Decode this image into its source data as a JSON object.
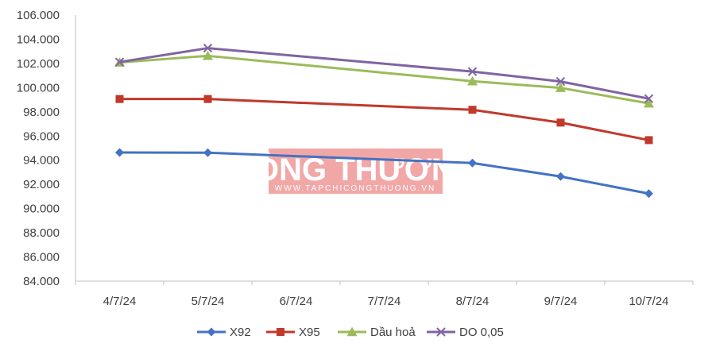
{
  "chart_data": {
    "type": "line",
    "categories": [
      "4/7/24",
      "5/7/24",
      "6/7/24",
      "7/7/24",
      "8/7/24",
      "9/7/24",
      "10/7/24"
    ],
    "y_tick_labels": [
      "84.000",
      "86.000",
      "88.000",
      "90.000",
      "92.000",
      "94.000",
      "96.000",
      "98.000",
      "100.000",
      "102.000",
      "104.000",
      "106.000"
    ],
    "ylim": [
      84000,
      106000
    ],
    "y_step": 2000,
    "grid": false,
    "legend_position": "bottom",
    "series": [
      {
        "name": "X92",
        "color": "#4472C4",
        "marker": "diamond",
        "values": [
          94640,
          94620,
          null,
          null,
          93770,
          92650,
          91240
        ]
      },
      {
        "name": "X95",
        "color": "#C0392B",
        "marker": "square",
        "values": [
          99060,
          99060,
          null,
          null,
          98170,
          97110,
          95660
        ]
      },
      {
        "name": "Dầu hoả",
        "color": "#9BBB59",
        "marker": "triangle",
        "values": [
          102080,
          102630,
          null,
          null,
          100530,
          99980,
          98700
        ]
      },
      {
        "name": "DO 0,05",
        "color": "#8064A2",
        "marker": "x",
        "values": [
          102120,
          103270,
          null,
          null,
          101330,
          100510,
          99090
        ]
      }
    ]
  },
  "watermark": {
    "title": "CÔNG THƯƠNG",
    "subtitle": "WWW.TAPCHICONGTHUONG.VN",
    "color": "#F2A7A7"
  }
}
